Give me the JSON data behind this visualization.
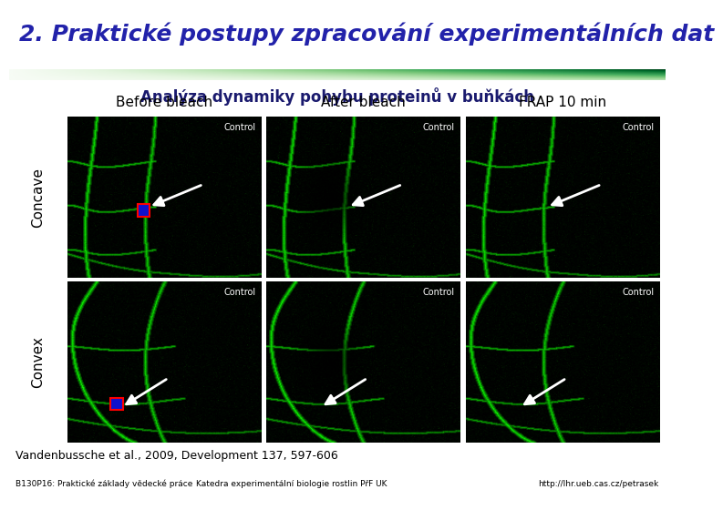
{
  "title": "2. Praktické postupy zpracování experimentálních dat",
  "subtitle": "Analýza dynamiky pohybu proteinů v buňkách",
  "col_labels": [
    "Before bleach",
    "After bleach",
    "FRAP 10 min"
  ],
  "row_labels": [
    "Concave",
    "Convex"
  ],
  "footer_left": "B130P16: Praktické základy vědecké práce",
  "footer_center": "Katedra experimentální biologie rostlin PřF UK",
  "footer_right": "http://lhr.ueb.cas.cz/petrasek",
  "citation": "Vandenbussche et al., 2009, Development 137, 597-606",
  "title_color": "#2222aa",
  "subtitle_color": "#1a1a6e",
  "bg_color": "#ffffff",
  "footer_bg": "#7ec8e8",
  "cell_label": "Control",
  "image_bg_color": "#051205",
  "title_fontsize": 18,
  "subtitle_fontsize": 12,
  "col_label_fontsize": 11,
  "row_label_fontsize": 11
}
